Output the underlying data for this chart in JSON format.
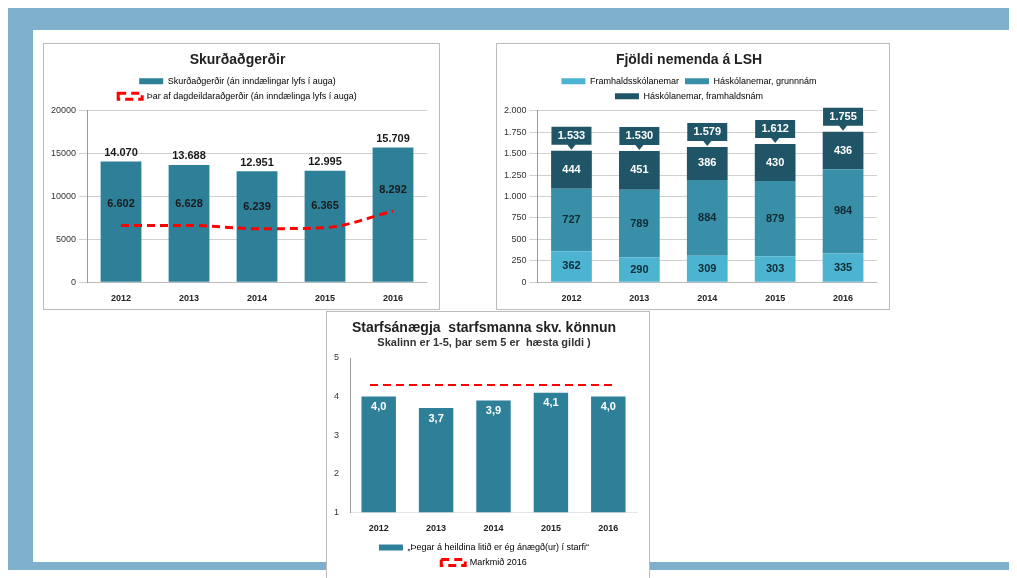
{
  "chart_data": [
    {
      "type": "bar",
      "title": "Skurðaðgerðir",
      "categories": [
        "2012",
        "2013",
        "2014",
        "2015",
        "2016"
      ],
      "series": [
        {
          "name": "Skurðaðgerðir (án inndælingar lyfs í auga)",
          "type": "bar",
          "color": "#2e7f98",
          "values": [
            14070,
            13688,
            12951,
            12995,
            15709
          ],
          "value_labels": [
            "14.070",
            "13.688",
            "12.951",
            "12.995",
            "15.709"
          ]
        },
        {
          "name": "Þar af dagdeildaraðgerðir (án inndælinga lyfs í auga)",
          "type": "line",
          "color": "#ff0000",
          "line_style": "dashed",
          "values": [
            6602,
            6628,
            6239,
            6365,
            8292
          ],
          "value_labels": [
            "6.602",
            "6.628",
            "6.239",
            "6.365",
            "8.292"
          ]
        }
      ],
      "ylim": [
        0,
        20000
      ],
      "yticks": [
        0,
        5000,
        10000,
        15000,
        20000
      ],
      "grid": "y",
      "legend": "top"
    },
    {
      "type": "bar",
      "title": "Fjöldi nemenda á LSH",
      "categories": [
        "2012",
        "2013",
        "2014",
        "2015",
        "2016"
      ],
      "stacked": true,
      "series": [
        {
          "name": "Framhaldsskólanemar",
          "color": "#4cb3d0",
          "values": [
            362,
            290,
            309,
            303,
            335
          ]
        },
        {
          "name": "Háskólanemar, grunnnám",
          "color": "#3a8fa8",
          "values": [
            727,
            789,
            884,
            879,
            984
          ]
        },
        {
          "name": "Háskólanemar, framhaldsnám",
          "color": "#1f5566",
          "values": [
            444,
            451,
            386,
            430,
            436
          ]
        }
      ],
      "data_labels": true,
      "totals": [
        "1.533",
        "1.530",
        "1.579",
        "1.612",
        "1.755"
      ],
      "ylim": [
        0,
        2000
      ],
      "yticks": [
        0,
        250,
        500,
        750,
        {
          "value": 1000,
          "label": "1.000"
        },
        {
          "value": 1250,
          "label": "1.250"
        },
        {
          "value": 1500,
          "label": "1.500"
        },
        {
          "value": 1750,
          "label": "1.750"
        },
        {
          "value": 2000,
          "label": "2.000"
        }
      ],
      "grid": "y",
      "legend": "top"
    },
    {
      "type": "bar",
      "title": "Starfsánægja  starfsmanna skv. könnun",
      "subtitle": "Skalinn er 1-5, þar sem 5 er  hæsta gildi )",
      "categories": [
        "2012",
        "2013",
        "2014",
        "2015",
        "2016"
      ],
      "series": [
        {
          "name": "„Þegar á heildina litið er ég ánægð(ur) í starfi“",
          "color": "#2e7f98",
          "values": [
            4.0,
            3.7,
            3.9,
            4.1,
            4.0
          ],
          "value_labels": [
            "4,0",
            "3,7",
            "3,9",
            "4,1",
            "4,0"
          ]
        }
      ],
      "ref_lines": [
        {
          "axis": "y",
          "value": 4.3,
          "label": "Markmið 2016",
          "color": "#ff0000",
          "line_style": "dashed"
        }
      ],
      "ylim": [
        1,
        5
      ],
      "yticks": [
        1,
        2,
        3,
        4,
        5
      ],
      "grid": false,
      "legend": "bottom"
    }
  ]
}
